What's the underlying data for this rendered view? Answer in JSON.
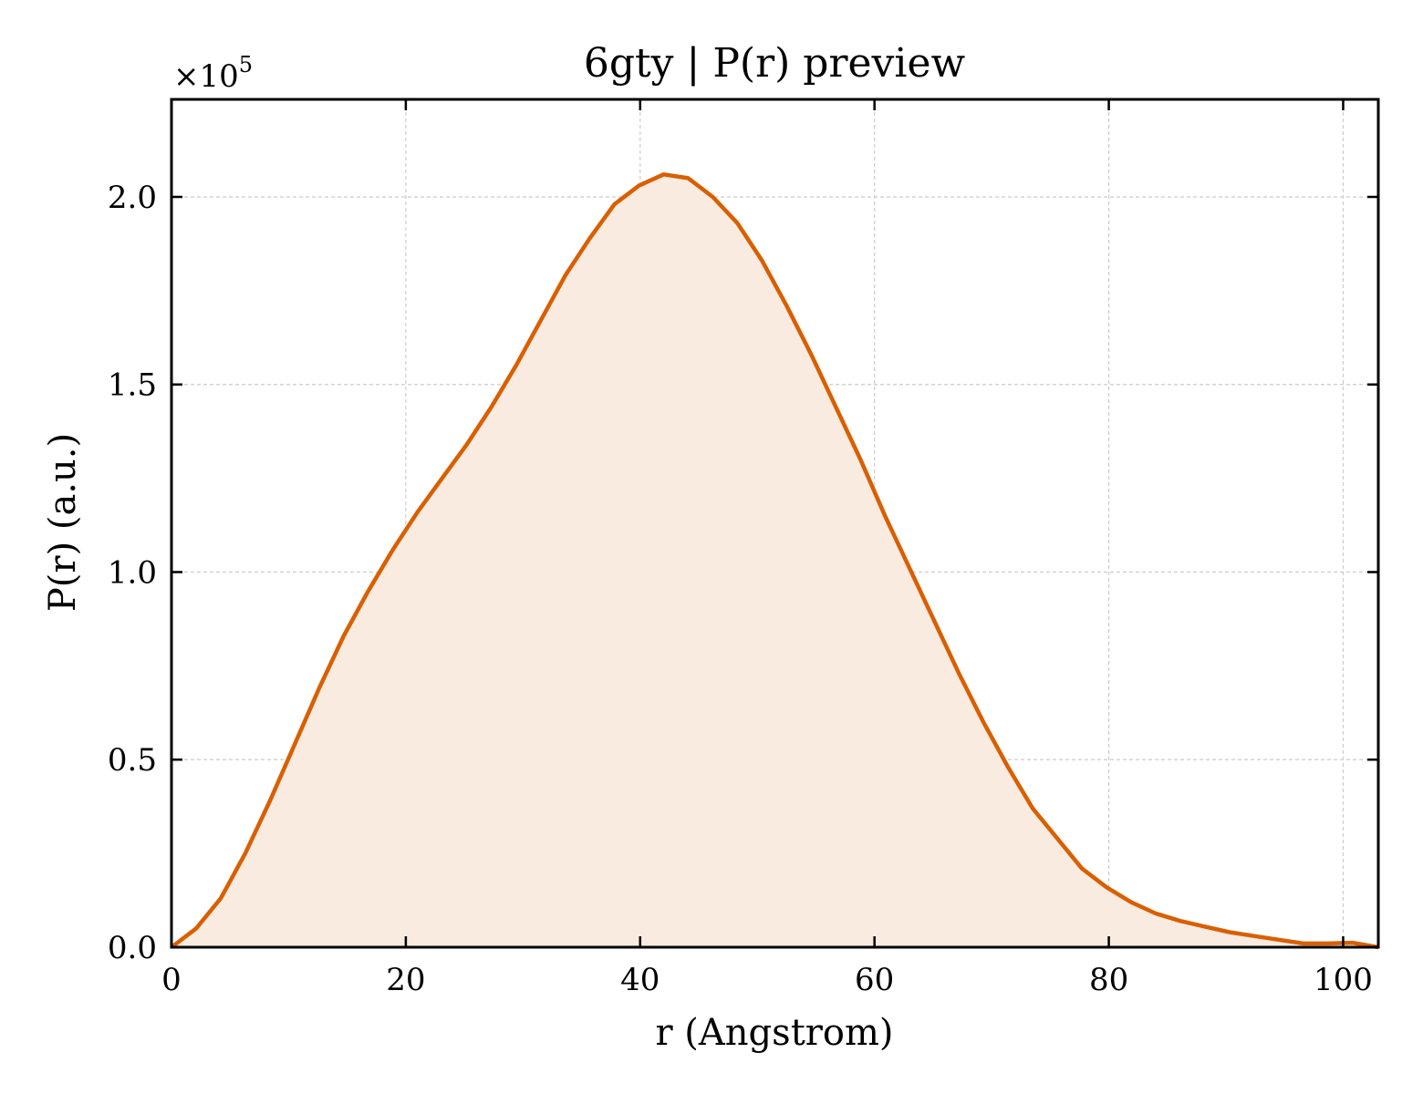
{
  "chart_data": {
    "type": "area",
    "title": "6gty | P(r) preview",
    "xlabel": "r (Angstrom)",
    "ylabel": "P(r) (a.u.)",
    "y_scale_factor": "×10",
    "y_scale_exponent": "5",
    "xlim": [
      0,
      103
    ],
    "ylim": [
      0,
      2.26
    ],
    "x_ticks": [
      0,
      20,
      40,
      60,
      80,
      100
    ],
    "x_tick_labels": [
      "0",
      "20",
      "40",
      "60",
      "80",
      "100"
    ],
    "y_ticks": [
      0,
      0.5,
      1.0,
      1.5,
      2.0
    ],
    "y_tick_labels": [
      "0.0",
      "0.5",
      "1.0",
      "1.5",
      "2.0"
    ],
    "grid": true,
    "legend": "none",
    "line_color": "#d95f02",
    "fill_color": "#f9ebe0",
    "series": [
      {
        "x": [
          0,
          2.1,
          4.2,
          6.3,
          8.4,
          10.5,
          12.6,
          14.7,
          16.8,
          18.9,
          21.0,
          23.1,
          25.2,
          27.3,
          29.4,
          31.5,
          33.6,
          35.7,
          37.8,
          39.9,
          42.0,
          44.1,
          46.2,
          48.3,
          50.4,
          52.5,
          54.6,
          56.7,
          58.8,
          60.9,
          63.0,
          65.1,
          67.2,
          69.3,
          71.4,
          73.5,
          75.6,
          77.7,
          79.8,
          81.9,
          84.0,
          86.1,
          88.2,
          90.3,
          92.4,
          94.5,
          96.6,
          98.7,
          100.8,
          103.0
        ],
        "values": [
          0.0,
          0.05,
          0.13,
          0.25,
          0.39,
          0.54,
          0.69,
          0.83,
          0.95,
          1.06,
          1.16,
          1.25,
          1.34,
          1.44,
          1.55,
          1.67,
          1.79,
          1.89,
          1.98,
          2.03,
          2.06,
          2.05,
          2.0,
          1.93,
          1.83,
          1.71,
          1.58,
          1.44,
          1.3,
          1.15,
          1.01,
          0.87,
          0.73,
          0.6,
          0.48,
          0.37,
          0.29,
          0.21,
          0.16,
          0.12,
          0.09,
          0.07,
          0.055,
          0.04,
          0.03,
          0.02,
          0.01,
          0.01,
          0.012,
          0.0
        ]
      }
    ]
  }
}
